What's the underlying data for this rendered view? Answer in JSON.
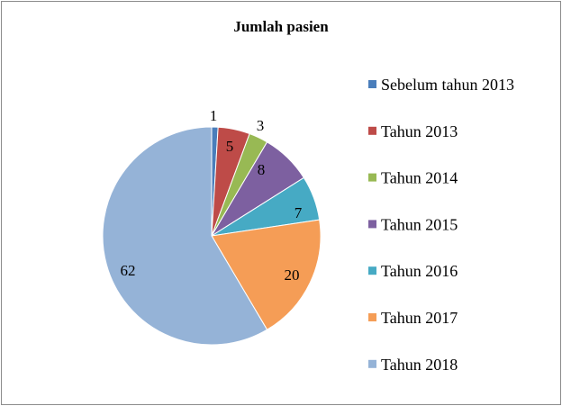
{
  "chart_data": {
    "type": "pie",
    "title": "Jumlah pasien",
    "categories": [
      "Sebelum tahun 2013",
      "Tahun 2013",
      "Tahun 2014",
      "Tahun 2015",
      "Tahun 2016",
      "Tahun 2017",
      "Tahun 2018"
    ],
    "values": [
      1,
      5,
      3,
      8,
      7,
      20,
      62
    ],
    "colors": [
      "#4a7ebb",
      "#be4b48",
      "#98b954",
      "#7d60a0",
      "#46aac4",
      "#f59d56",
      "#95b3d7"
    ],
    "legend": "right",
    "start_angle": "12 o'clock",
    "direction": "clockwise"
  }
}
